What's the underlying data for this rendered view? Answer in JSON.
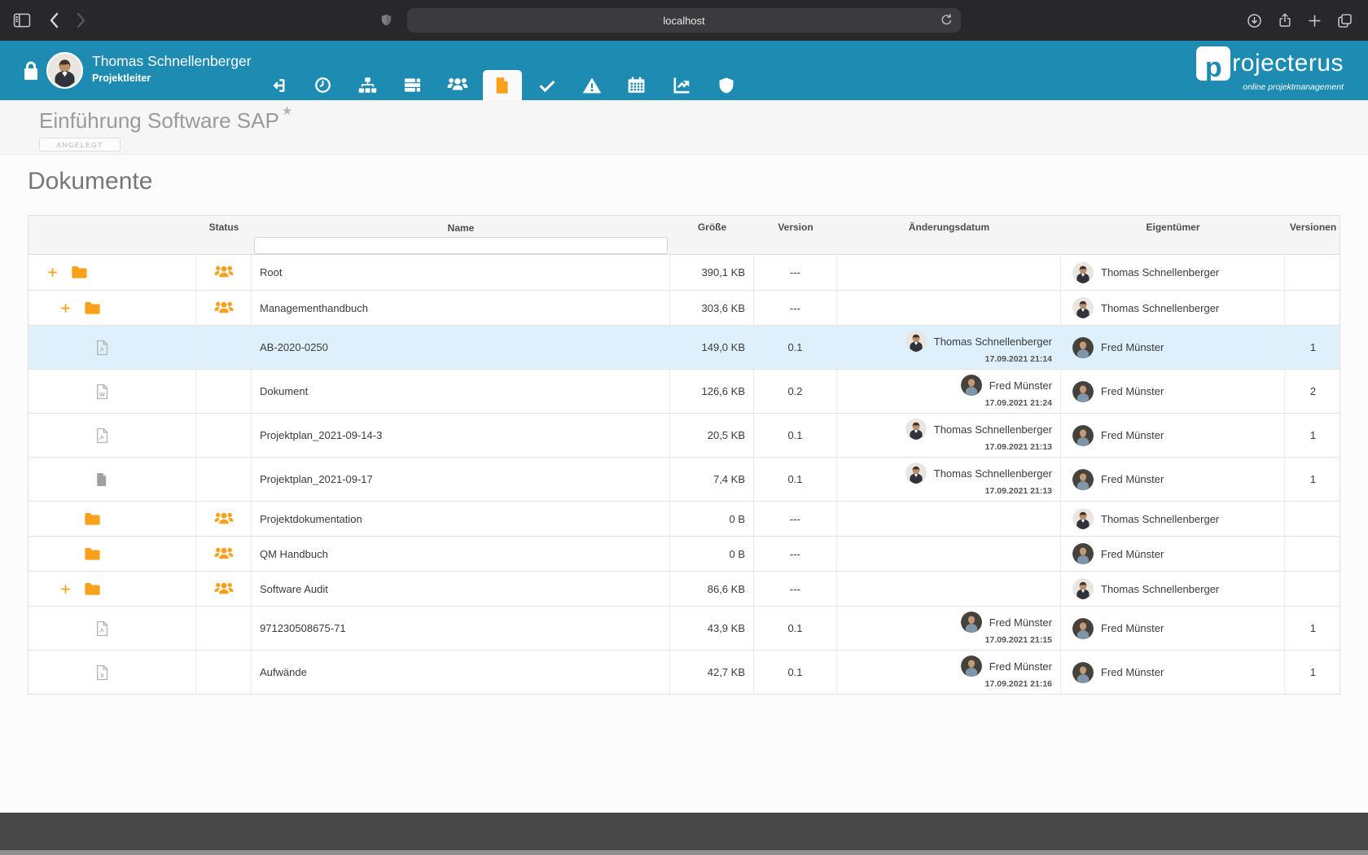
{
  "browser": {
    "url": "localhost"
  },
  "header": {
    "user_name": "Thomas Schnellenberger",
    "user_role": "Projektleiter",
    "logo": {
      "first_letter": "p",
      "rest": "rojecterus",
      "tagline": "online projektmanagement"
    }
  },
  "nav": {
    "items": [
      {
        "id": "logout",
        "icon": "logout",
        "active": false
      },
      {
        "id": "history",
        "icon": "clock",
        "active": false
      },
      {
        "id": "structure",
        "icon": "sitemap",
        "active": false
      },
      {
        "id": "projects",
        "icon": "server",
        "active": false
      },
      {
        "id": "team",
        "icon": "users",
        "active": false
      },
      {
        "id": "documents",
        "icon": "document",
        "active": true
      },
      {
        "id": "tasks",
        "icon": "check",
        "active": false
      },
      {
        "id": "risks",
        "icon": "warning",
        "active": false
      },
      {
        "id": "calendar",
        "icon": "calendar",
        "active": false
      },
      {
        "id": "reports",
        "icon": "chart",
        "active": false
      },
      {
        "id": "security",
        "icon": "shield",
        "active": false
      }
    ]
  },
  "project": {
    "title": "Einführung Software SAP",
    "status_badge": "ANGELEGT"
  },
  "page": {
    "heading": "Dokumente"
  },
  "people": {
    "thomas": "Thomas Schnellenberger",
    "fred": "Fred Münster"
  },
  "colors": {
    "accent_blue": "#1E8CB2",
    "accent_orange": "#F9A11B",
    "selected_row": "#DDF0FB"
  },
  "table": {
    "columns": {
      "status": "Status",
      "name": "Name",
      "size": "Größe",
      "version": "Version",
      "modified": "Änderungsdatum",
      "owner": "Eigentümer",
      "versions": "Versionen"
    },
    "name_filter_value": "",
    "rows": [
      {
        "kind": "folder",
        "level": 0,
        "expandable": true,
        "shared": true,
        "name": "Root",
        "size": "390,1 KB",
        "version": "---",
        "modified": null,
        "owner": "thomas",
        "versions": "",
        "selected": false
      },
      {
        "kind": "folder",
        "level": 1,
        "expandable": true,
        "shared": true,
        "name": "Managementhandbuch",
        "size": "303,6 KB",
        "version": "---",
        "modified": null,
        "owner": "thomas",
        "versions": "",
        "selected": false
      },
      {
        "kind": "doc",
        "filetype": "pdf",
        "level": 2,
        "name": "AB-2020-0250",
        "size": "149,0 KB",
        "version": "0.1",
        "modified": {
          "person": "thomas",
          "date": "17.09.2021 21:14"
        },
        "owner": "fred",
        "versions": "1",
        "selected": true
      },
      {
        "kind": "doc",
        "filetype": "word",
        "level": 2,
        "name": "Dokument",
        "size": "126,6 KB",
        "version": "0.2",
        "modified": {
          "person": "fred",
          "date": "17.09.2021 21:24"
        },
        "owner": "fred",
        "versions": "2",
        "selected": false
      },
      {
        "kind": "doc",
        "filetype": "pdf",
        "level": 2,
        "name": "Projektplan_2021-09-14-3",
        "size": "20,5 KB",
        "version": "0.1",
        "modified": {
          "person": "thomas",
          "date": "17.09.2021 21:13"
        },
        "owner": "fred",
        "versions": "1",
        "selected": false
      },
      {
        "kind": "doc",
        "filetype": "generic",
        "level": 2,
        "name": "Projektplan_2021-09-17",
        "size": "7,4 KB",
        "version": "0.1",
        "modified": {
          "person": "thomas",
          "date": "17.09.2021 21:13"
        },
        "owner": "fred",
        "versions": "1",
        "selected": false
      },
      {
        "kind": "folder",
        "level": 1,
        "expandable": false,
        "shared": true,
        "name": "Projektdokumentation",
        "size": "0 B",
        "version": "---",
        "modified": null,
        "owner": "thomas",
        "versions": "",
        "selected": false
      },
      {
        "kind": "folder",
        "level": 1,
        "expandable": false,
        "shared": true,
        "name": "QM Handbuch",
        "size": "0 B",
        "version": "---",
        "modified": null,
        "owner": "fred",
        "versions": "",
        "selected": false
      },
      {
        "kind": "folder",
        "level": 1,
        "expandable": true,
        "shared": true,
        "name": "Software Audit",
        "size": "86,6 KB",
        "version": "---",
        "modified": null,
        "owner": "thomas",
        "versions": "",
        "selected": false
      },
      {
        "kind": "doc",
        "filetype": "pdf",
        "level": 2,
        "name": "971230508675-71",
        "size": "43,9 KB",
        "version": "0.1",
        "modified": {
          "person": "fred",
          "date": "17.09.2021 21:15"
        },
        "owner": "fred",
        "versions": "1",
        "selected": false
      },
      {
        "kind": "doc",
        "filetype": "excel",
        "level": 2,
        "name": "Aufwände",
        "size": "42,7 KB",
        "version": "0.1",
        "modified": {
          "person": "fred",
          "date": "17.09.2021 21:16"
        },
        "owner": "fred",
        "versions": "1",
        "selected": false
      }
    ]
  }
}
